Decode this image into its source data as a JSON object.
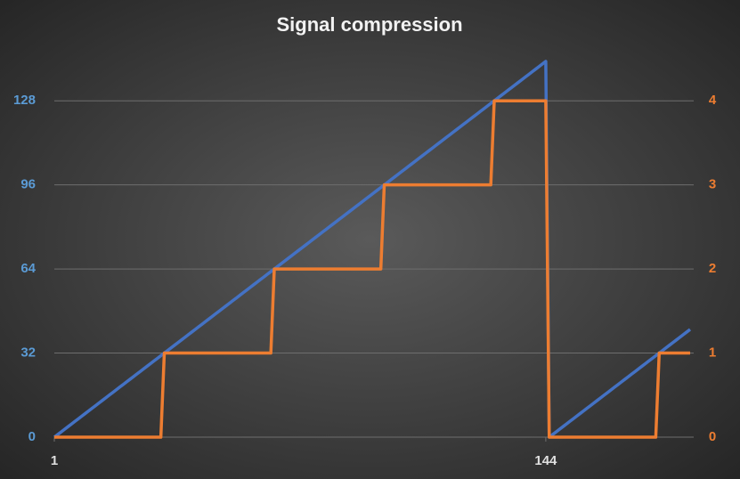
{
  "chart_data": {
    "type": "line",
    "title": "Signal compression",
    "x": [
      1,
      2,
      3,
      4,
      5,
      6,
      7,
      8,
      9,
      10,
      11,
      12,
      13,
      14,
      15,
      16,
      17,
      18,
      19,
      20,
      21,
      22,
      23,
      24,
      25,
      26,
      27,
      28,
      29,
      30,
      31,
      32,
      33,
      34,
      35,
      36,
      37,
      38,
      39,
      40,
      41,
      42,
      43,
      44,
      45,
      46,
      47,
      48,
      49,
      50,
      51,
      52,
      53,
      54,
      55,
      56,
      57,
      58,
      59,
      60,
      61,
      62,
      63,
      64,
      65,
      66,
      67,
      68,
      69,
      70,
      71,
      72,
      73,
      74,
      75,
      76,
      77,
      78,
      79,
      80,
      81,
      82,
      83,
      84,
      85,
      86,
      87,
      88,
      89,
      90,
      91,
      92,
      93,
      94,
      95,
      96,
      97,
      98,
      99,
      100,
      101,
      102,
      103,
      104,
      105,
      106,
      107,
      108,
      109,
      110,
      111,
      112,
      113,
      114,
      115,
      116,
      117,
      118,
      119,
      120,
      121,
      122,
      123,
      124,
      125,
      126,
      127,
      128,
      129,
      130,
      131,
      132,
      133,
      134,
      135,
      136,
      137,
      138,
      139,
      140,
      141,
      142,
      143,
      144,
      145,
      146,
      147,
      148,
      149,
      150,
      151,
      152,
      153,
      154,
      155,
      156,
      157,
      158,
      159,
      160,
      161,
      162,
      163,
      164,
      165,
      166,
      167,
      168,
      169,
      170,
      171,
      172,
      173,
      174,
      175,
      176,
      177,
      178,
      179,
      180,
      181,
      182,
      183,
      184,
      185,
      186
    ],
    "series": [
      {
        "color": "#4472c4",
        "axis": "y",
        "values": [
          0,
          1,
          2,
          3,
          4,
          5,
          6,
          7,
          8,
          9,
          10,
          11,
          12,
          13,
          14,
          15,
          16,
          17,
          18,
          19,
          20,
          21,
          22,
          23,
          24,
          25,
          26,
          27,
          28,
          29,
          30,
          31,
          32,
          33,
          34,
          35,
          36,
          37,
          38,
          39,
          40,
          41,
          42,
          43,
          44,
          45,
          46,
          47,
          48,
          49,
          50,
          51,
          52,
          53,
          54,
          55,
          56,
          57,
          58,
          59,
          60,
          61,
          62,
          63,
          64,
          65,
          66,
          67,
          68,
          69,
          70,
          71,
          72,
          73,
          74,
          75,
          76,
          77,
          78,
          79,
          80,
          81,
          82,
          83,
          84,
          85,
          86,
          87,
          88,
          89,
          90,
          91,
          92,
          93,
          94,
          95,
          96,
          97,
          98,
          99,
          100,
          101,
          102,
          103,
          104,
          105,
          106,
          107,
          108,
          109,
          110,
          111,
          112,
          113,
          114,
          115,
          116,
          117,
          118,
          119,
          120,
          121,
          122,
          123,
          124,
          125,
          126,
          127,
          128,
          129,
          130,
          131,
          132,
          133,
          134,
          135,
          136,
          137,
          138,
          139,
          140,
          141,
          142,
          143,
          0,
          1,
          2,
          3,
          4,
          5,
          6,
          7,
          8,
          9,
          10,
          11,
          12,
          13,
          14,
          15,
          16,
          17,
          18,
          19,
          20,
          21,
          22,
          23,
          24,
          25,
          26,
          27,
          28,
          29,
          30,
          31,
          32,
          33,
          34,
          35,
          36,
          37,
          38,
          39,
          40,
          41
        ]
      },
      {
        "color": "#ed7d31",
        "axis": "y2",
        "values": [
          0,
          0,
          0,
          0,
          0,
          0,
          0,
          0,
          0,
          0,
          0,
          0,
          0,
          0,
          0,
          0,
          0,
          0,
          0,
          0,
          0,
          0,
          0,
          0,
          0,
          0,
          0,
          0,
          0,
          0,
          0,
          0,
          1,
          1,
          1,
          1,
          1,
          1,
          1,
          1,
          1,
          1,
          1,
          1,
          1,
          1,
          1,
          1,
          1,
          1,
          1,
          1,
          1,
          1,
          1,
          1,
          1,
          1,
          1,
          1,
          1,
          1,
          1,
          1,
          2,
          2,
          2,
          2,
          2,
          2,
          2,
          2,
          2,
          2,
          2,
          2,
          2,
          2,
          2,
          2,
          2,
          2,
          2,
          2,
          2,
          2,
          2,
          2,
          2,
          2,
          2,
          2,
          2,
          2,
          2,
          2,
          3,
          3,
          3,
          3,
          3,
          3,
          3,
          3,
          3,
          3,
          3,
          3,
          3,
          3,
          3,
          3,
          3,
          3,
          3,
          3,
          3,
          3,
          3,
          3,
          3,
          3,
          3,
          3,
          3,
          3,
          3,
          3,
          4,
          4,
          4,
          4,
          4,
          4,
          4,
          4,
          4,
          4,
          4,
          4,
          4,
          4,
          4,
          4,
          0,
          0,
          0,
          0,
          0,
          0,
          0,
          0,
          0,
          0,
          0,
          0,
          0,
          0,
          0,
          0,
          0,
          0,
          0,
          0,
          0,
          0,
          0,
          0,
          0,
          0,
          0,
          0,
          0,
          0,
          0,
          0,
          1,
          1,
          1,
          1,
          1,
          1,
          1,
          1,
          1,
          1
        ]
      }
    ],
    "xlim": [
      1,
      186
    ],
    "xticks": [
      1,
      144
    ],
    "ylim": [
      0,
      144
    ],
    "yticks": [
      0,
      32,
      64,
      96,
      128
    ],
    "y2lim": [
      0,
      4.5
    ],
    "y2ticks": [
      0,
      1,
      2,
      3,
      4
    ],
    "grid": true
  }
}
